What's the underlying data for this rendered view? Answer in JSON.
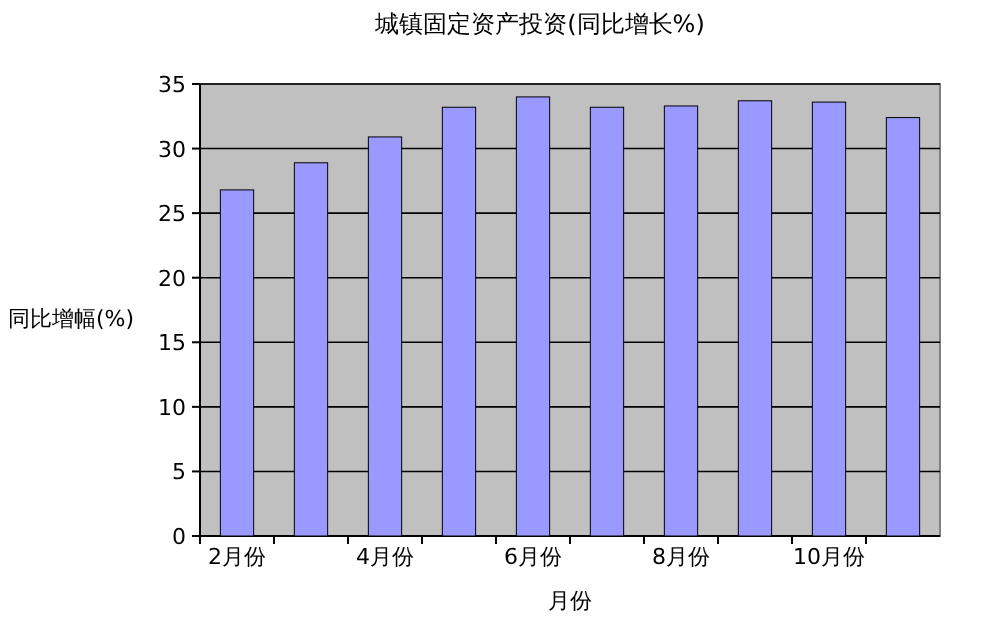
{
  "chart_data": {
    "type": "bar",
    "title": "城镇固定资产投资(同比增长%)",
    "xlabel": "月份",
    "ylabel": "同比增幅(%)",
    "categories": [
      "2月份",
      null,
      "4月份",
      null,
      "6月份",
      null,
      "8月份",
      null,
      "10月份",
      null
    ],
    "values": [
      26.8,
      28.9,
      30.9,
      33.2,
      34.0,
      33.2,
      33.3,
      33.7,
      33.6,
      32.4
    ],
    "color": "#9999ff",
    "ylim": [
      0,
      35
    ],
    "yticks": [
      0,
      5,
      10,
      15,
      20,
      25,
      30,
      35
    ],
    "grid": "y"
  }
}
